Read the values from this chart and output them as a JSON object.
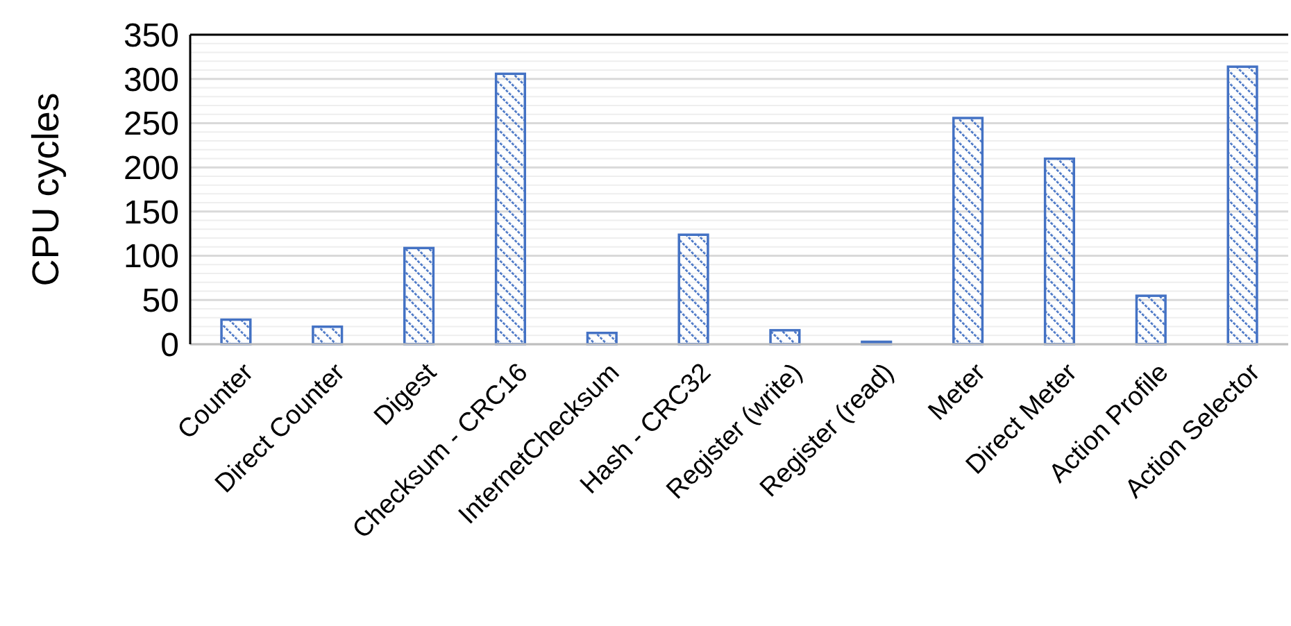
{
  "chart_data": {
    "type": "bar",
    "ylabel": "CPU cycles",
    "categories": [
      "Counter",
      "Direct Counter",
      "Digest",
      "Checksum - CRC16",
      "InternetChecksum",
      "Hash - CRC32",
      "Register (write)",
      "Register (read)",
      "Meter",
      "Direct Meter",
      "Action Profile",
      "Action Selector"
    ],
    "values": [
      28,
      20,
      109,
      306,
      13,
      124,
      16,
      3,
      256,
      210,
      55,
      314
    ],
    "color": "#4472c4",
    "ylim": [
      0,
      350
    ],
    "yticks": [
      0,
      {
        "value": 10,
        "label": null
      },
      {
        "value": 20,
        "label": null
      },
      {
        "value": 30,
        "label": null
      },
      {
        "value": 40,
        "label": null
      },
      50,
      {
        "value": 60,
        "label": null
      },
      {
        "value": 70,
        "label": null
      },
      {
        "value": 80,
        "label": null
      },
      {
        "value": 90,
        "label": null
      },
      100,
      {
        "value": 110,
        "label": null
      },
      {
        "value": 120,
        "label": null
      },
      {
        "value": 130,
        "label": null
      },
      {
        "value": 140,
        "label": null
      },
      150,
      {
        "value": 160,
        "label": null
      },
      {
        "value": 170,
        "label": null
      },
      {
        "value": 180,
        "label": null
      },
      {
        "value": 190,
        "label": null
      },
      200,
      {
        "value": 210,
        "label": null
      },
      {
        "value": 220,
        "label": null
      },
      {
        "value": 230,
        "label": null
      },
      {
        "value": 240,
        "label": null
      },
      250,
      {
        "value": 260,
        "label": null
      },
      {
        "value": 270,
        "label": null
      },
      {
        "value": 280,
        "label": null
      },
      {
        "value": 290,
        "label": null
      },
      300,
      {
        "value": 310,
        "label": null
      },
      {
        "value": 320,
        "label": null
      },
      {
        "value": 330,
        "label": null
      },
      {
        "value": 340,
        "label": null
      },
      350
    ],
    "grid": "y"
  }
}
